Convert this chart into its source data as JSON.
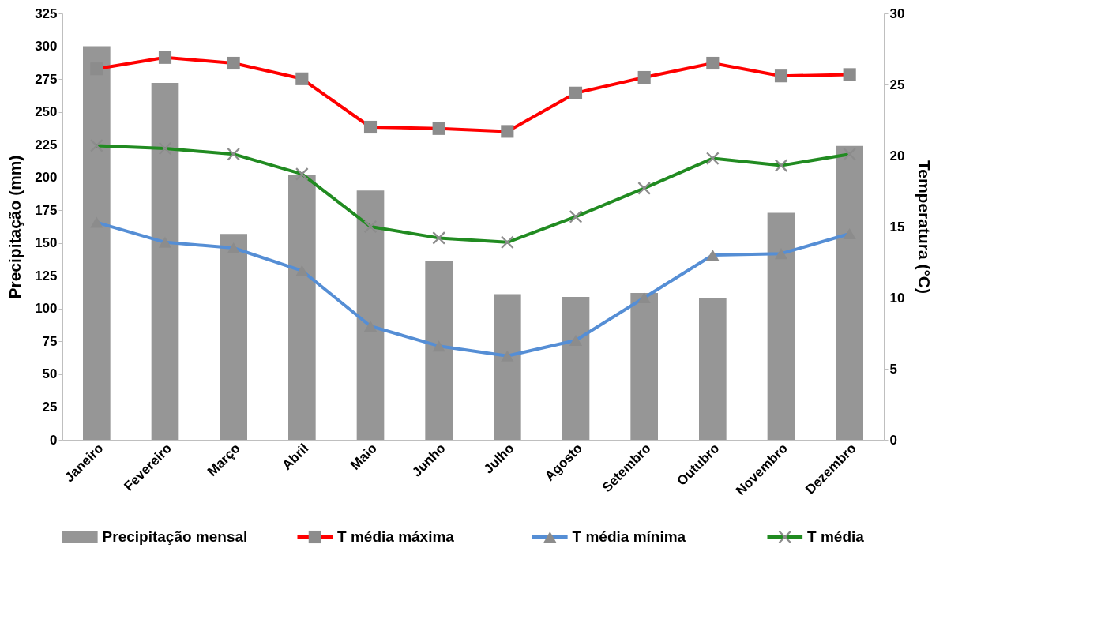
{
  "chart_data": {
    "type": "bar",
    "ylabel": "Precipitação (mm)",
    "y2label": "Temperatura (°C)",
    "categories": [
      "Janeiro",
      "Fevereiro",
      "Março",
      "Abril",
      "Maio",
      "Junho",
      "Julho",
      "Agosto",
      "Setembro",
      "Outubro",
      "Novembro",
      "Dezembro"
    ],
    "series": [
      {
        "name": "Precipitação mensal",
        "color": "#969696",
        "values": [
          300,
          272,
          157,
          202,
          190,
          136,
          111,
          109,
          112,
          108,
          173,
          224
        ]
      },
      {
        "name": "T média máxima",
        "type": "line",
        "axis": "y2",
        "color": "#ff0000",
        "marker": "square",
        "values": [
          26.1,
          26.9,
          26.5,
          25.4,
          22.0,
          21.9,
          21.7,
          24.4,
          25.5,
          26.5,
          25.6,
          25.7
        ]
      },
      {
        "name": "T média mínima",
        "type": "line",
        "axis": "y2",
        "color": "#558ed5",
        "marker": "triangle",
        "values": [
          15.3,
          13.9,
          13.5,
          11.9,
          8.0,
          6.6,
          5.9,
          7.0,
          10.0,
          13.0,
          13.1,
          14.5
        ]
      },
      {
        "name": "T média",
        "type": "line",
        "axis": "y2",
        "color": "#218b21",
        "marker": "cross",
        "values": [
          20.7,
          20.5,
          20.1,
          18.7,
          15.0,
          14.2,
          13.9,
          15.7,
          17.7,
          19.8,
          19.3,
          20.1
        ]
      }
    ],
    "ylim": [
      0,
      325
    ],
    "yticks": [
      0,
      25,
      50,
      75,
      100,
      125,
      150,
      175,
      200,
      225,
      250,
      275,
      300,
      325
    ],
    "y2lim": [
      0,
      30
    ],
    "y2ticks": [
      0,
      5,
      10,
      15,
      20,
      25,
      30
    ],
    "grid": false,
    "legend": "bottom",
    "line_style": "solid"
  }
}
